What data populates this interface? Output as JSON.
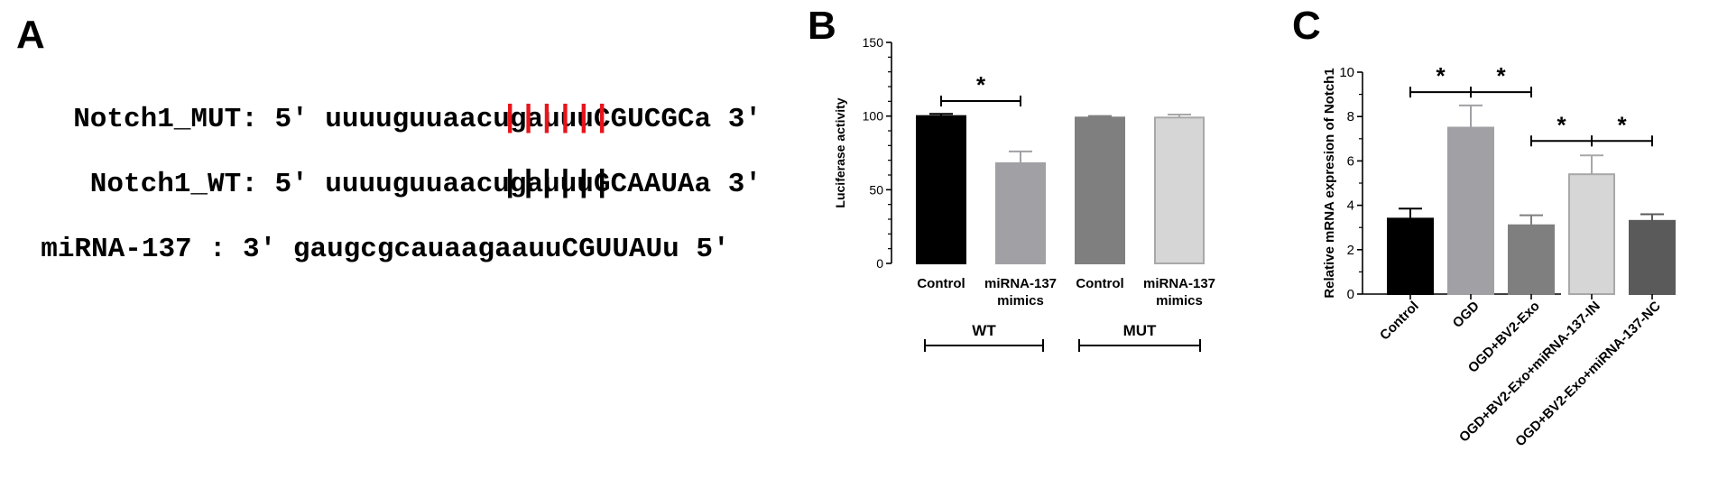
{
  "panel_a": {
    "letter": "A",
    "rows": [
      {
        "name": "Notch1_MUT",
        "sep": ":",
        "left_end": "5'",
        "lower": "uuuuguuaacugauuu",
        "upper": "CGUCGC",
        "tail": "a",
        "right_end": "3'"
      },
      {
        "name": "Notch1_WT",
        "sep": ":",
        "left_end": "5'",
        "lower": "uuuuguuaacugauuu",
        "upper": "GCAAUA",
        "tail": "a",
        "right_end": "3'"
      },
      {
        "name": "miRNA-137",
        "sep": " :",
        "left_end": "3'",
        "lower": "gaugcgcauaagaauu",
        "upper": "CGUUAU",
        "tail": "u",
        "right_end": "5'"
      }
    ],
    "pair_marks": "||||||",
    "colors": {
      "mut_pairs": "#e8141b",
      "wt_pairs": "#000000"
    }
  },
  "chart_data": [
    {
      "panel": "B",
      "type": "bar",
      "ylabel": "Luciferase activity",
      "ylim": [
        0,
        150
      ],
      "yticks": [
        0,
        50,
        100,
        150
      ],
      "categories": [
        "Control",
        "miRNA-137 mimics",
        "Control",
        "miRNA-137 mimics"
      ],
      "values": [
        100,
        68,
        99,
        99
      ],
      "errors": [
        1.5,
        8,
        1,
        2
      ],
      "colors": [
        "#000000",
        "#a0a0a5",
        "#7f7f7f",
        "#d6d6d6"
      ],
      "groups": [
        {
          "label": "WT",
          "members": [
            0,
            1
          ]
        },
        {
          "label": "MUT",
          "members": [
            2,
            3
          ]
        }
      ],
      "significance": [
        {
          "between": [
            0,
            1
          ],
          "label": "*"
        }
      ]
    },
    {
      "panel": "C",
      "type": "bar",
      "ylabel": "Relative mRNA expresion of Notch1",
      "ylim": [
        0,
        10
      ],
      "yticks": [
        0,
        2,
        4,
        6,
        8,
        10
      ],
      "categories": [
        "Control",
        "OGD",
        "OGD+BV2-Exo",
        "OGD+BV2-Exo+miRNA-137-IN",
        "OGD+BV2-Exo+miRNA-137-NC"
      ],
      "values": [
        3.4,
        7.5,
        3.1,
        5.4,
        3.3
      ],
      "errors": [
        0.45,
        1.0,
        0.45,
        0.85,
        0.3
      ],
      "colors": [
        "#000000",
        "#a0a0a5",
        "#7f7f7f",
        "#d6d6d6",
        "#5a5a5a"
      ],
      "significance": [
        {
          "between": [
            0,
            1
          ],
          "label": "*",
          "y": 9.1
        },
        {
          "between": [
            1,
            2
          ],
          "label": "*",
          "y": 9.1
        },
        {
          "between": [
            2,
            3
          ],
          "label": "*",
          "y": 6.9
        },
        {
          "between": [
            3,
            4
          ],
          "label": "*",
          "y": 6.9
        }
      ]
    }
  ]
}
